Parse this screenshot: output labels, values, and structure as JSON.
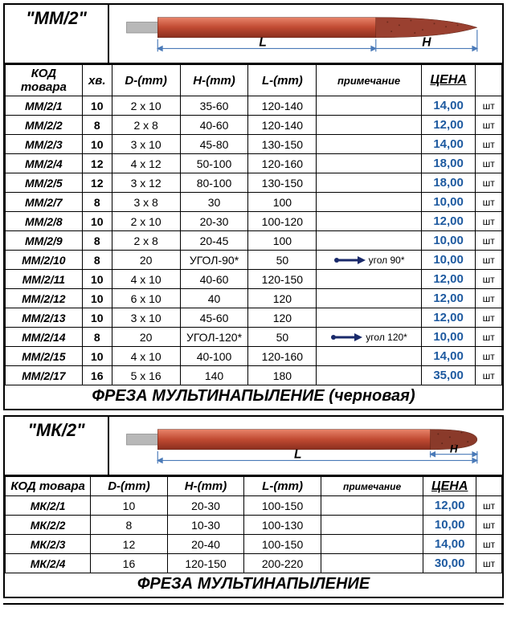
{
  "section1": {
    "label": "\"ММ/2\"",
    "headers": {
      "code": "КОД товара",
      "hv": "хв.",
      "d": "D-(mm)",
      "h": "H-(mm)",
      "l": "L-(mm)",
      "note": "примечание",
      "price": "ЦЕНА"
    },
    "unit": "шт",
    "rows": [
      {
        "code": "ММ/2/1",
        "hv": "10",
        "d": "2 x 10",
        "h": "35-60",
        "l": "120-140",
        "note": "",
        "price": "14,00"
      },
      {
        "code": "ММ/2/2",
        "hv": "8",
        "d": "2 x 8",
        "h": "40-60",
        "l": "120-140",
        "note": "",
        "price": "12,00"
      },
      {
        "code": "ММ/2/3",
        "hv": "10",
        "d": "3 x 10",
        "h": "45-80",
        "l": "130-150",
        "note": "",
        "price": "14,00"
      },
      {
        "code": "ММ/2/4",
        "hv": "12",
        "d": "4 x 12",
        "h": "50-100",
        "l": "120-160",
        "note": "",
        "price": "18,00"
      },
      {
        "code": "ММ/2/5",
        "hv": "12",
        "d": "3 x 12",
        "h": "80-100",
        "l": "130-150",
        "note": "",
        "price": "18,00"
      },
      {
        "code": "ММ/2/7",
        "hv": "8",
        "d": "3 x 8",
        "h": "30",
        "l": "100",
        "note": "",
        "price": "10,00"
      },
      {
        "code": "ММ/2/8",
        "hv": "10",
        "d": "2 x 10",
        "h": "20-30",
        "l": "100-120",
        "note": "",
        "price": "12,00"
      },
      {
        "code": "ММ/2/9",
        "hv": "8",
        "d": "2 x 8",
        "h": "20-45",
        "l": "100",
        "note": "",
        "price": "10,00"
      },
      {
        "code": "ММ/2/10",
        "hv": "8",
        "d": "20",
        "h": "УГОЛ-90*",
        "l": "50",
        "note": "угол 90*",
        "arrow": true,
        "price": "10,00"
      },
      {
        "code": "ММ/2/11",
        "hv": "10",
        "d": "4 x 10",
        "h": "40-60",
        "l": "120-150",
        "note": "",
        "price": "12,00"
      },
      {
        "code": "ММ/2/12",
        "hv": "10",
        "d": "6 x 10",
        "h": "40",
        "l": "120",
        "note": "",
        "price": "12,00"
      },
      {
        "code": "ММ/2/13",
        "hv": "10",
        "d": "3 x 10",
        "h": "45-60",
        "l": "120",
        "note": "",
        "price": "12,00"
      },
      {
        "code": "ММ/2/14",
        "hv": "8",
        "d": "20",
        "h": "УГОЛ-120*",
        "l": "50",
        "note": "угол 120*",
        "arrow": true,
        "price": "10,00"
      },
      {
        "code": "ММ/2/15",
        "hv": "10",
        "d": "4 x 10",
        "h": "40-100",
        "l": "120-160",
        "note": "",
        "price": "14,00"
      },
      {
        "code": "ММ/2/17",
        "hv": "16",
        "d": "5 x 16",
        "h": "140",
        "l": "180",
        "note": "",
        "price": "35,00"
      }
    ],
    "title": "ФРЕЗА МУЛЬТИНАПЫЛЕНИЕ (черновая)",
    "diagram": {
      "L_label": "L",
      "H_label": "H",
      "shank_color": "#b0b0b0",
      "body_color_light": "#d96a4a",
      "body_color_dark": "#a03c28",
      "tip_color": "#8b3a2a",
      "dim_color": "#4a7ab8"
    }
  },
  "section2": {
    "label": "\"МК/2\"",
    "headers": {
      "code": "КОД товара",
      "d": "D-(mm)",
      "h": "H-(mm)",
      "l": "L-(mm)",
      "note": "примечание",
      "price": "ЦЕНА"
    },
    "unit": "шт",
    "rows": [
      {
        "code": "МК/2/1",
        "d": "10",
        "h": "20-30",
        "l": "100-150",
        "note": "",
        "price": "12,00"
      },
      {
        "code": "МК/2/2",
        "d": "8",
        "h": "10-30",
        "l": "100-130",
        "note": "",
        "price": "10,00"
      },
      {
        "code": "МК/2/3",
        "d": "12",
        "h": "20-40",
        "l": "100-150",
        "note": "",
        "price": "14,00"
      },
      {
        "code": "МК/2/4",
        "d": "16",
        "h": "120-150",
        "l": "200-220",
        "note": "",
        "price": "30,00"
      }
    ],
    "title": "ФРЕЗА МУЛЬТИНАПЫЛЕНИЕ",
    "diagram": {
      "L_label": "L",
      "H_label": "H",
      "shank_color": "#b0b0b0",
      "body_color_light": "#d96a4a",
      "body_color_dark": "#a03c28",
      "tip_color": "#7a3424",
      "dim_color": "#4a7ab8"
    }
  },
  "colors": {
    "price_text": "#1e5aa0",
    "arrow": "#1a2a6b"
  }
}
